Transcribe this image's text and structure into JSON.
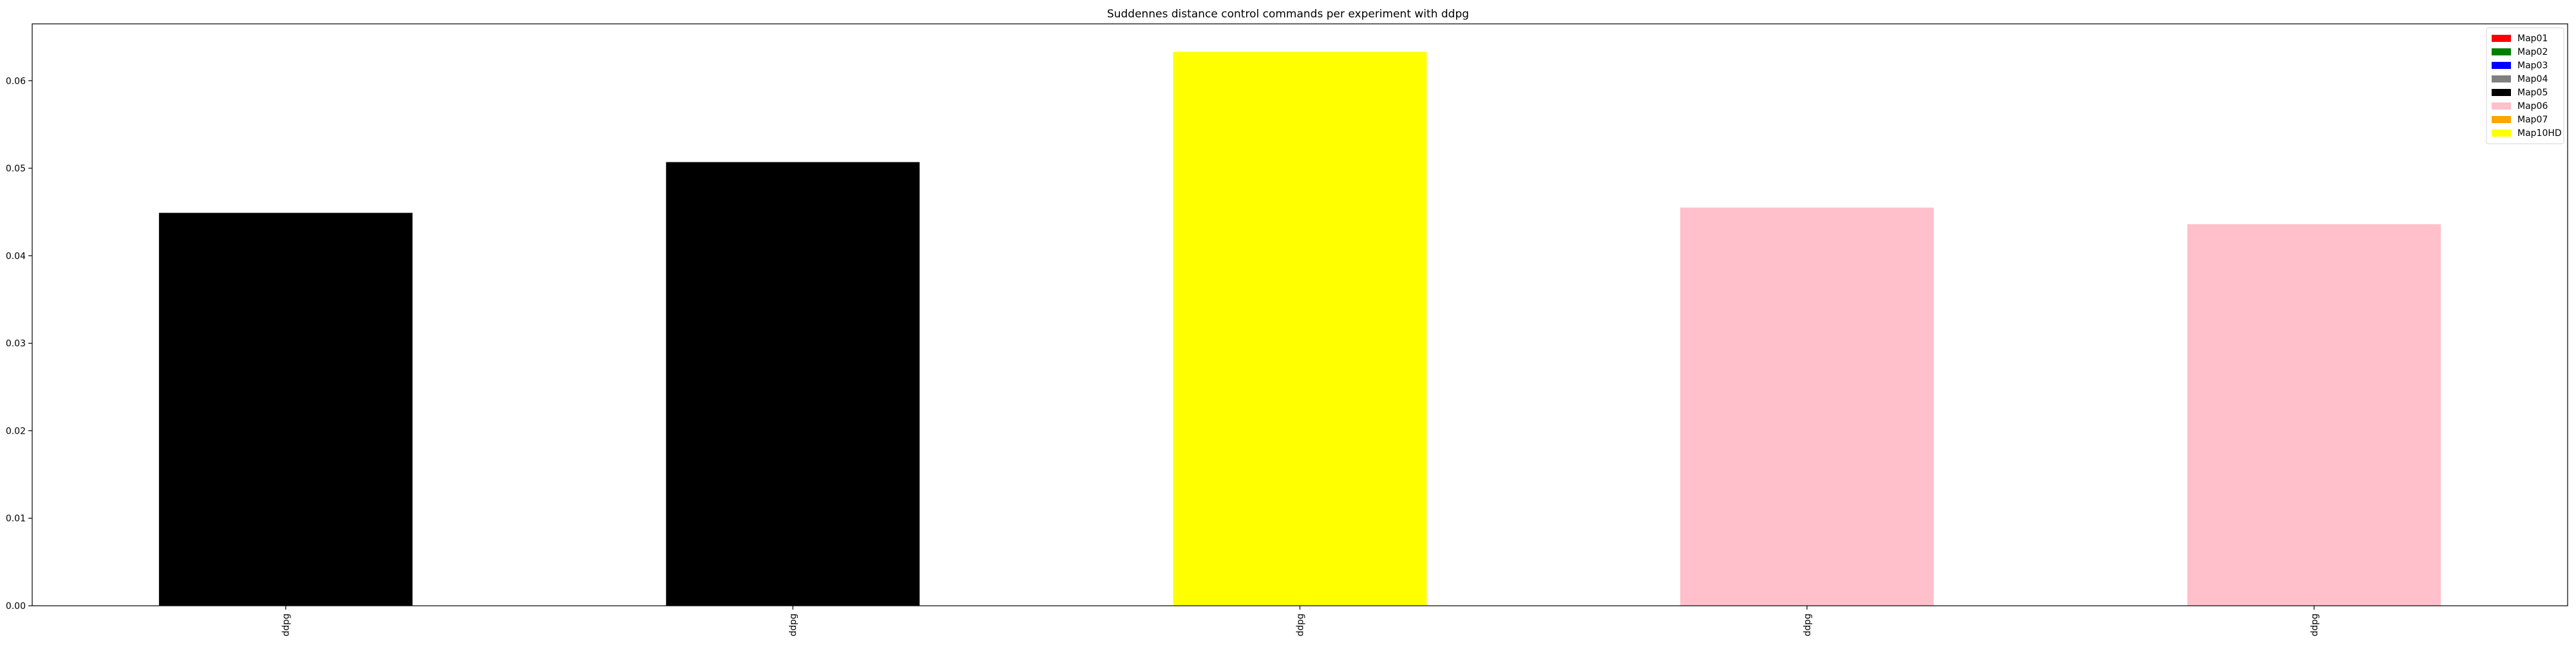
{
  "chart_data": {
    "type": "bar",
    "title": "Suddennes distance control commands per experiment with ddpg",
    "xlabel": "",
    "ylabel": "",
    "categories": [
      "ddpg",
      "ddpg",
      "ddpg",
      "ddpg",
      "ddpg"
    ],
    "values": [
      0.0449,
      0.0507,
      0.0633,
      0.0455,
      0.0436
    ],
    "bar_colors": [
      "#000000",
      "#000000",
      "#ffff00",
      "#ffc0cb",
      "#ffc0cb"
    ],
    "ylim": [
      0,
      0.0665
    ],
    "yticks": [
      0.0,
      0.01,
      0.02,
      0.03,
      0.04,
      0.05,
      0.06
    ],
    "ytick_labels": [
      "0.00",
      "0.01",
      "0.02",
      "0.03",
      "0.04",
      "0.05",
      "0.06"
    ],
    "grid": false,
    "legend_position": "top-right",
    "legend": [
      {
        "label": "Map01",
        "color": "#ff0000"
      },
      {
        "label": "Map02",
        "color": "#008000"
      },
      {
        "label": "Map03",
        "color": "#0000ff"
      },
      {
        "label": "Map04",
        "color": "#808080"
      },
      {
        "label": "Map05",
        "color": "#000000"
      },
      {
        "label": "Map06",
        "color": "#ffc0cb"
      },
      {
        "label": "Map07",
        "color": "#ffa500"
      },
      {
        "label": "Map10HD",
        "color": "#ffff00"
      }
    ]
  }
}
